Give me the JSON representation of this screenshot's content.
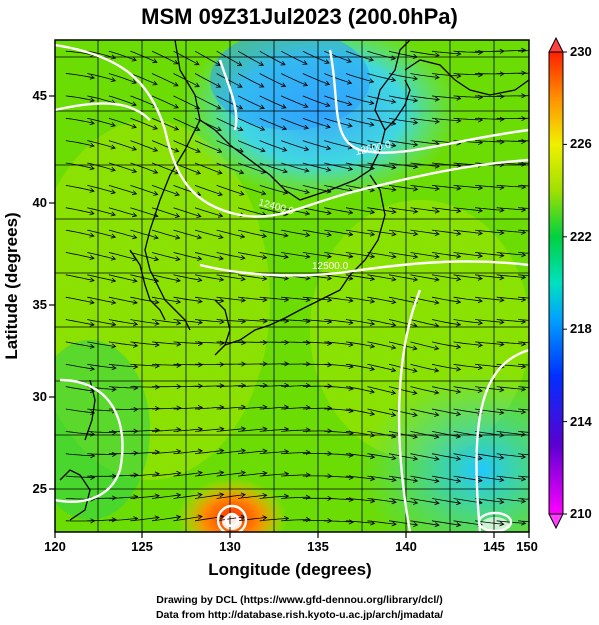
{
  "title": "MSM 09Z31Jul2023 (200.0hPa)",
  "xaxis": {
    "label": "Longitude (degrees)",
    "ticks": [
      "120",
      "125",
      "130",
      "135",
      "140",
      "145",
      "150"
    ],
    "range": [
      120,
      150
    ]
  },
  "yaxis": {
    "label": "Latitude  (degrees)",
    "ticks": [
      "25",
      "30",
      "35",
      "40",
      "45"
    ],
    "range": [
      22.4,
      47.6
    ]
  },
  "colorbar": {
    "ticks": [
      "210",
      "214",
      "218",
      "222",
      "226",
      "230"
    ],
    "range": [
      210,
      230
    ]
  },
  "contour_labels": [
    "12500.0",
    "12600.0",
    "12400.0"
  ],
  "footer": {
    "line1": "Drawing by DCL (https://www.gfd-dennou.org/library/dcl/)",
    "line2": "Data from http://database.rish.kyoto-u.ac.jp/arch/jmadata/"
  },
  "colors": {
    "land_outline": "#000000",
    "contour": "#ffffff",
    "streamline": "#000000"
  }
}
